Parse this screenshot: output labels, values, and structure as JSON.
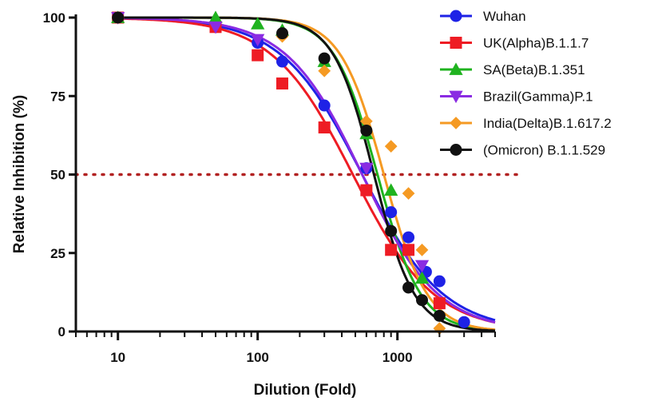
{
  "chart_data": {
    "type": "scatter",
    "title": "",
    "xlabel": "Dilution (Fold)",
    "ylabel": "Relative Inhibition (%)",
    "x_scale": "log",
    "xlim": [
      5,
      5000
    ],
    "ylim": [
      0,
      100
    ],
    "x_ticks": [
      {
        "value": 10,
        "label": "10"
      },
      {
        "value": 100,
        "label": "100"
      },
      {
        "value": 1000,
        "label": "1000"
      }
    ],
    "y_ticks": [
      {
        "value": 0,
        "label": "0"
      },
      {
        "value": 25,
        "label": "25"
      },
      {
        "value": 50,
        "label": "50"
      },
      {
        "value": 75,
        "label": "75"
      },
      {
        "value": 100,
        "label": "100"
      }
    ],
    "grid": false,
    "legend_position": "top-right",
    "reference_line": {
      "y": 50,
      "style": "dotted",
      "color": "#b22222"
    },
    "series": [
      {
        "name": "Wuhan",
        "color": "#1e22e6",
        "marker": "circle",
        "ic50": 560,
        "hill": 1.5,
        "x": [
          10,
          50,
          100,
          150,
          300,
          600,
          900,
          1200,
          1600,
          2000,
          3000
        ],
        "y": [
          100,
          97,
          92,
          86,
          72,
          52,
          38,
          30,
          19,
          16,
          3
        ]
      },
      {
        "name": "UK(Alpha)B.1.1.7",
        "color": "#ee1c24",
        "marker": "square",
        "ic50": 480,
        "hill": 1.5,
        "x": [
          10,
          50,
          100,
          150,
          300,
          600,
          900,
          1200,
          2000
        ],
        "y": [
          100,
          97,
          88,
          79,
          65,
          45,
          26,
          26,
          9
        ]
      },
      {
        "name": "SA(Beta)B.1.351",
        "color": "#1fb31f",
        "marker": "triangle-up",
        "ic50": 720,
        "hill": 2.8,
        "x": [
          10,
          50,
          100,
          150,
          300,
          600,
          900,
          1500
        ],
        "y": [
          100,
          100,
          98,
          96,
          86,
          63,
          45,
          17
        ]
      },
      {
        "name": "Brazil(Gamma)P.1",
        "color": "#8a2be2",
        "marker": "triangle-down",
        "ic50": 560,
        "hill": 1.6,
        "x": [
          10,
          50,
          100,
          600,
          1500
        ],
        "y": [
          100,
          97,
          93,
          52,
          21
        ]
      },
      {
        "name": "India(Delta)B.1.617.2",
        "color": "#f59a23",
        "marker": "diamond",
        "ic50": 800,
        "hill": 2.8,
        "x": [
          10,
          150,
          300,
          600,
          900,
          1200,
          1500,
          2000
        ],
        "y": [
          100,
          94,
          83,
          67,
          59,
          44,
          26,
          1
        ]
      },
      {
        "name": "(Omicron) B.1.1.529",
        "color": "#111111",
        "marker": "circle",
        "ic50": 680,
        "hill": 3.0,
        "x": [
          10,
          150,
          300,
          600,
          900,
          1200,
          1500,
          2000
        ],
        "y": [
          100,
          95,
          87,
          64,
          32,
          14,
          10,
          5
        ]
      }
    ]
  }
}
